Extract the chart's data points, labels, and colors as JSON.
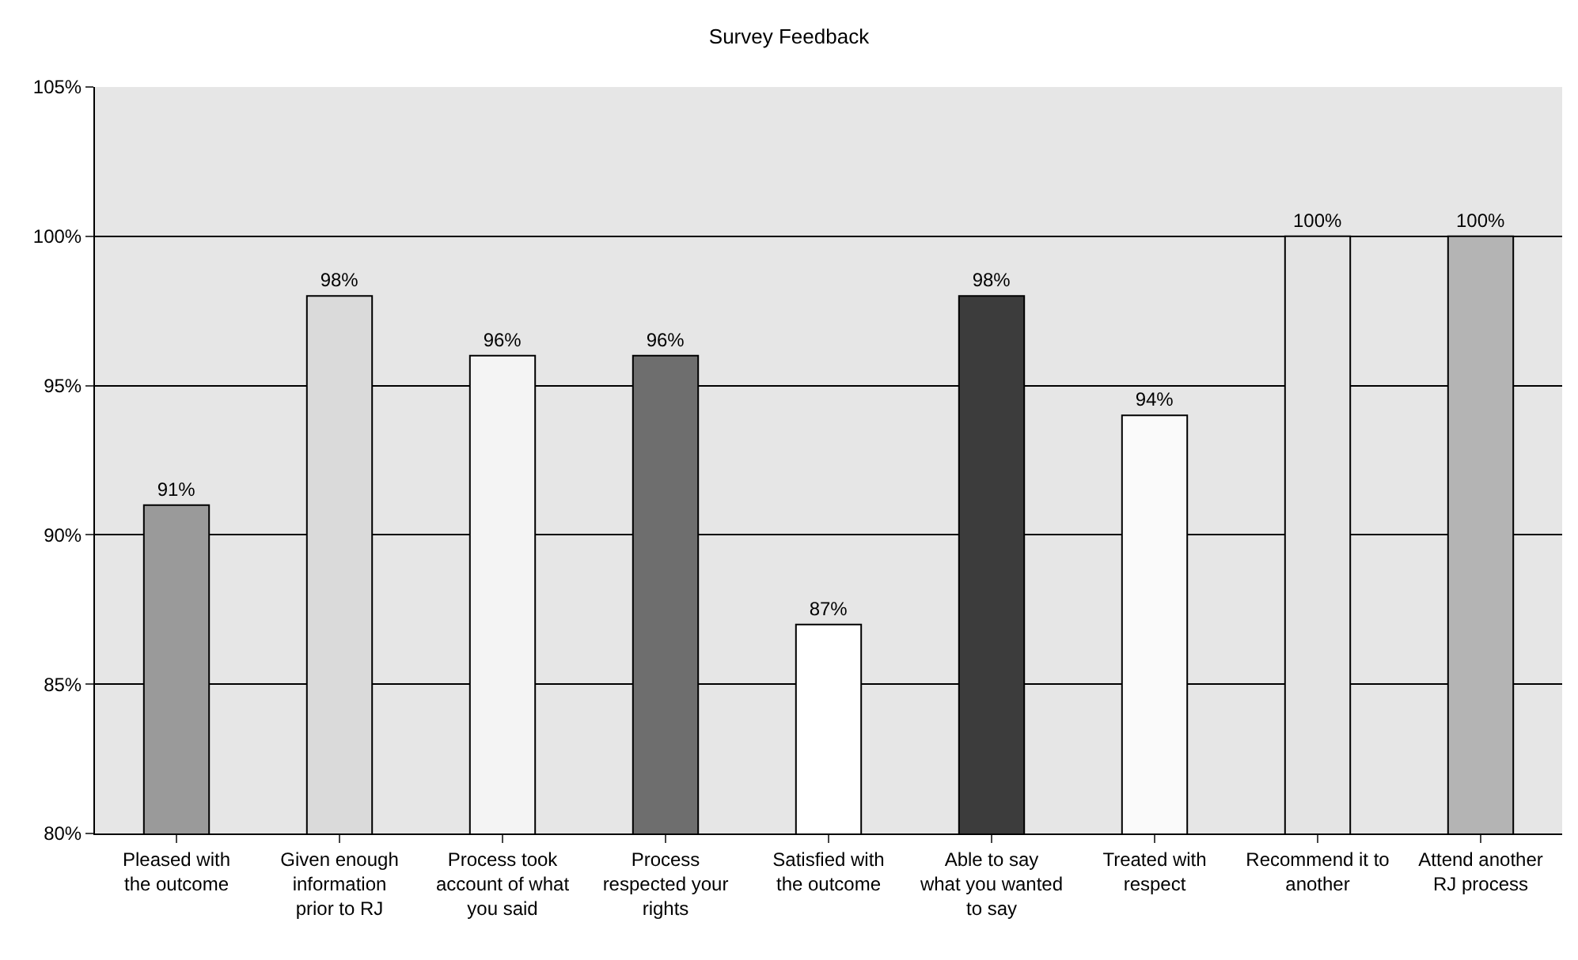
{
  "chart_data": {
    "type": "bar",
    "title": "Survey Feedback",
    "categories": [
      "Pleased with the outcome",
      "Given enough information prior to RJ",
      "Process took account of what you said",
      "Process respected your rights",
      "Satisfied with the outcome",
      "Able to say what you wanted to say",
      "Treated with respect",
      "Recommend it to another",
      "Attend another RJ process"
    ],
    "values": [
      91,
      98,
      96,
      96,
      87,
      98,
      94,
      100,
      100
    ],
    "value_labels": [
      "91%",
      "98%",
      "96%",
      "96%",
      "87%",
      "98%",
      "94%",
      "100%",
      "100%"
    ],
    "colors": [
      "#9a9a9a",
      "#dadada",
      "#f4f4f4",
      "#6e6e6e",
      "#ffffff",
      "#3c3c3c",
      "#fafafa",
      "#e4e4e4",
      "#b4b4b4"
    ],
    "ylim": [
      80,
      105
    ],
    "yticks": [
      {
        "value": 80,
        "label": "80%"
      },
      {
        "value": 85,
        "label": "85%"
      },
      {
        "value": 90,
        "label": "90%"
      },
      {
        "value": 95,
        "label": "95%"
      },
      {
        "value": 100,
        "label": "100%"
      },
      {
        "value": 105,
        "label": "105%"
      }
    ],
    "grid": "y",
    "legend": false
  }
}
